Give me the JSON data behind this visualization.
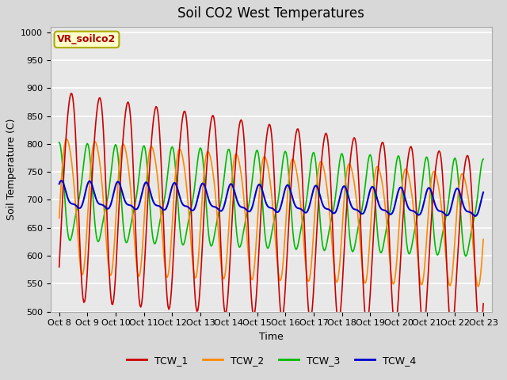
{
  "title": "Soil CO2 West Temperatures",
  "xlabel": "Time",
  "ylabel": "Soil Temperature (C)",
  "ylim": [
    500,
    1010
  ],
  "yticks": [
    500,
    550,
    600,
    650,
    700,
    750,
    800,
    850,
    900,
    950,
    1000
  ],
  "x_labels": [
    "Oct 8",
    "Oct 9",
    "Oct 10",
    "Oct 11",
    "Oct 12",
    "Oct 13",
    "Oct 14",
    "Oct 15",
    "Oct 16",
    "Oct 17",
    "Oct 18",
    "Oct 19",
    "Oct 20",
    "Oct 21",
    "Oct 22",
    "Oct 23"
  ],
  "annotation_text": "VR_soilco2",
  "annotation_bg": "#ffffcc",
  "annotation_border": "#aaaa00",
  "annotation_text_color": "#aa0000",
  "series_colors": [
    "#cc0000",
    "#ff8800",
    "#00bb00",
    "#0000cc"
  ],
  "series_labels": [
    "TCW_1",
    "TCW_2",
    "TCW_3",
    "TCW_4"
  ],
  "bg_color": "#d8d8d8",
  "plot_bg": "#e8e8e8",
  "grid_color": "#ffffff",
  "title_fontsize": 12,
  "axis_fontsize": 9,
  "tick_fontsize": 8
}
